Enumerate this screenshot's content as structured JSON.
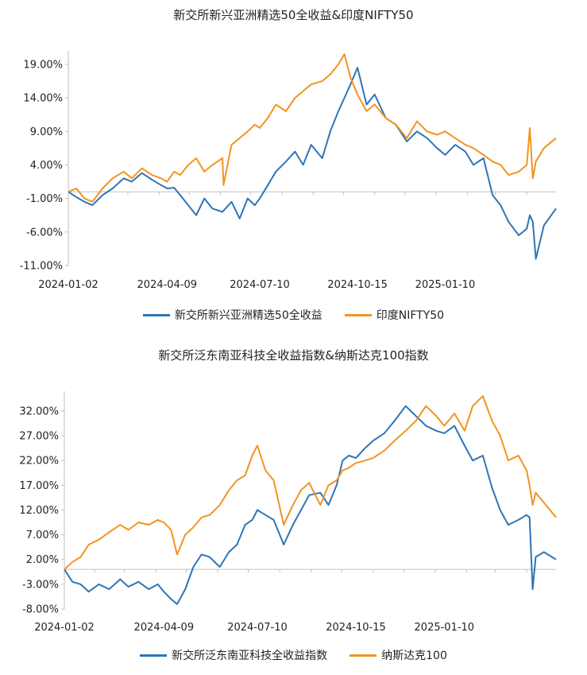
{
  "colors": {
    "blue": "#2E75B6",
    "orange": "#F39321",
    "axis": "#BFBFBF"
  },
  "chart_data": [
    {
      "type": "line",
      "title": "新交所新兴亚洲精选50全收益&印度NIFTY50",
      "x_tick_labels": [
        "2024-01-02",
        "2024-04-09",
        "2024-07-10",
        "2024-10-15",
        "2025-01-10"
      ],
      "x_range": [
        "2024-01-02",
        "2025-04-30"
      ],
      "y_tick_labels": [
        "-11.00%",
        "-6.00%",
        "-1.00%",
        "4.00%",
        "9.00%",
        "14.00%",
        "19.00%"
      ],
      "ylim": [
        -11,
        21
      ],
      "grid": false,
      "legend_position": "bottom",
      "series": [
        {
          "name": "新交所新兴亚洲精选50全收益",
          "color": "#2E75B6",
          "x": [
            "2024-01-02",
            "2024-01-10",
            "2024-01-18",
            "2024-01-26",
            "2024-02-05",
            "2024-02-15",
            "2024-02-26",
            "2024-03-05",
            "2024-03-15",
            "2024-03-25",
            "2024-04-03",
            "2024-04-09",
            "2024-04-16",
            "2024-04-22",
            "2024-04-30",
            "2024-05-08",
            "2024-05-16",
            "2024-05-24",
            "2024-06-03",
            "2024-06-12",
            "2024-06-20",
            "2024-06-28",
            "2024-07-05",
            "2024-07-10",
            "2024-07-18",
            "2024-07-26",
            "2024-08-05",
            "2024-08-14",
            "2024-08-22",
            "2024-08-30",
            "2024-09-10",
            "2024-09-18",
            "2024-09-26",
            "2024-10-02",
            "2024-10-08",
            "2024-10-15",
            "2024-10-24",
            "2024-11-01",
            "2024-11-12",
            "2024-11-22",
            "2024-12-03",
            "2024-12-13",
            "2024-12-23",
            "2025-01-02",
            "2025-01-10",
            "2025-01-20",
            "2025-01-30",
            "2025-02-07",
            "2025-02-17",
            "2025-02-26",
            "2025-03-06",
            "2025-03-14",
            "2025-03-24",
            "2025-04-01",
            "2025-04-04",
            "2025-04-07",
            "2025-04-10",
            "2025-04-18",
            "2025-04-30"
          ],
          "values": [
            0.0,
            -0.8,
            -1.5,
            -2.0,
            -0.5,
            0.5,
            2.0,
            1.5,
            2.8,
            1.8,
            1.0,
            0.5,
            0.6,
            -0.5,
            -2.0,
            -3.5,
            -1.0,
            -2.5,
            -3.0,
            -1.5,
            -4.0,
            -1.0,
            -2.0,
            -1.0,
            1.0,
            3.0,
            4.5,
            6.0,
            4.0,
            7.0,
            5.0,
            9.0,
            12.0,
            14.0,
            16.0,
            18.5,
            13.0,
            14.5,
            11.0,
            10.0,
            7.5,
            9.0,
            8.0,
            6.5,
            5.5,
            7.0,
            6.0,
            4.0,
            5.0,
            -0.5,
            -2.0,
            -4.5,
            -6.5,
            -5.5,
            -3.5,
            -4.5,
            -10.0,
            -5.0,
            -2.5
          ]
        },
        {
          "name": "印度NIFTY50",
          "color": "#F39321",
          "x": [
            "2024-01-02",
            "2024-01-10",
            "2024-01-18",
            "2024-01-26",
            "2024-02-05",
            "2024-02-15",
            "2024-02-26",
            "2024-03-05",
            "2024-03-15",
            "2024-03-25",
            "2024-04-03",
            "2024-04-09",
            "2024-04-16",
            "2024-04-22",
            "2024-04-30",
            "2024-05-08",
            "2024-05-16",
            "2024-05-24",
            "2024-06-03",
            "2024-06-04",
            "2024-06-12",
            "2024-06-20",
            "2024-06-28",
            "2024-07-05",
            "2024-07-10",
            "2024-07-18",
            "2024-07-26",
            "2024-08-05",
            "2024-08-14",
            "2024-08-22",
            "2024-08-30",
            "2024-09-10",
            "2024-09-18",
            "2024-09-26",
            "2024-10-02",
            "2024-10-08",
            "2024-10-15",
            "2024-10-24",
            "2024-11-01",
            "2024-11-12",
            "2024-11-22",
            "2024-12-03",
            "2024-12-13",
            "2024-12-23",
            "2025-01-02",
            "2025-01-10",
            "2025-01-20",
            "2025-01-30",
            "2025-02-07",
            "2025-02-17",
            "2025-02-26",
            "2025-03-06",
            "2025-03-14",
            "2025-03-24",
            "2025-04-01",
            "2025-04-04",
            "2025-04-07",
            "2025-04-10",
            "2025-04-18",
            "2025-04-30"
          ],
          "values": [
            0.0,
            0.5,
            -1.0,
            -1.5,
            0.5,
            2.0,
            3.0,
            2.0,
            3.5,
            2.5,
            2.0,
            1.5,
            3.0,
            2.5,
            4.0,
            5.0,
            3.0,
            4.0,
            5.0,
            1.0,
            7.0,
            8.0,
            9.0,
            10.0,
            9.5,
            11.0,
            13.0,
            12.0,
            14.0,
            15.0,
            16.0,
            16.5,
            17.5,
            19.0,
            20.5,
            17.0,
            14.5,
            12.0,
            13.0,
            11.0,
            10.0,
            8.0,
            10.5,
            9.0,
            8.5,
            9.0,
            8.0,
            7.0,
            6.5,
            5.5,
            4.5,
            4.0,
            2.5,
            3.0,
            4.0,
            9.5,
            2.0,
            4.5,
            6.5,
            8.0
          ]
        }
      ]
    },
    {
      "type": "line",
      "title": "新交所泛东南亚科技全收益指数&纳斯达克100指数",
      "x_tick_labels": [
        "2024-01-02",
        "2024-04-09",
        "2024-07-10",
        "2024-10-15",
        "2025-01-10"
      ],
      "x_range": [
        "2024-01-02",
        "2025-04-30"
      ],
      "y_tick_labels": [
        "-8.00%",
        "-3.00%",
        "2.00%",
        "7.00%",
        "12.00%",
        "17.00%",
        "22.00%",
        "27.00%",
        "32.00%"
      ],
      "ylim": [
        -8,
        36
      ],
      "grid": false,
      "legend_position": "bottom",
      "series": [
        {
          "name": "新交所泛东南亚科技全收益指数",
          "color": "#2E75B6",
          "x": [
            "2024-01-02",
            "2024-01-10",
            "2024-01-18",
            "2024-01-26",
            "2024-02-05",
            "2024-02-15",
            "2024-02-26",
            "2024-03-05",
            "2024-03-15",
            "2024-03-25",
            "2024-04-03",
            "2024-04-09",
            "2024-04-16",
            "2024-04-22",
            "2024-04-30",
            "2024-05-08",
            "2024-05-16",
            "2024-05-24",
            "2024-06-03",
            "2024-06-12",
            "2024-06-20",
            "2024-06-28",
            "2024-07-05",
            "2024-07-10",
            "2024-07-18",
            "2024-07-26",
            "2024-08-05",
            "2024-08-14",
            "2024-08-22",
            "2024-08-30",
            "2024-09-10",
            "2024-09-18",
            "2024-09-26",
            "2024-10-02",
            "2024-10-08",
            "2024-10-15",
            "2024-10-24",
            "2024-11-01",
            "2024-11-12",
            "2024-11-22",
            "2024-12-03",
            "2024-12-13",
            "2024-12-23",
            "2025-01-02",
            "2025-01-10",
            "2025-01-20",
            "2025-01-30",
            "2025-02-07",
            "2025-02-17",
            "2025-02-26",
            "2025-03-06",
            "2025-03-14",
            "2025-03-24",
            "2025-04-01",
            "2025-04-04",
            "2025-04-07",
            "2025-04-10",
            "2025-04-18",
            "2025-04-30"
          ],
          "values": [
            0.0,
            -2.5,
            -3.0,
            -4.5,
            -3.0,
            -4.0,
            -2.0,
            -3.5,
            -2.5,
            -4.0,
            -3.0,
            -4.5,
            -6.0,
            -7.0,
            -4.0,
            0.5,
            3.0,
            2.5,
            0.5,
            3.5,
            5.0,
            9.0,
            10.0,
            12.0,
            11.0,
            10.0,
            5.0,
            9.0,
            12.0,
            15.0,
            15.5,
            13.0,
            17.0,
            22.0,
            23.0,
            22.5,
            24.5,
            26.0,
            27.5,
            30.0,
            33.0,
            31.0,
            29.0,
            28.0,
            27.5,
            29.0,
            25.0,
            22.0,
            23.0,
            16.5,
            12.0,
            9.0,
            10.0,
            11.0,
            10.5,
            -4.0,
            2.5,
            3.5,
            2.0
          ]
        },
        {
          "name": "纳斯达克100",
          "color": "#F39321",
          "x": [
            "2024-01-02",
            "2024-01-10",
            "2024-01-18",
            "2024-01-26",
            "2024-02-05",
            "2024-02-15",
            "2024-02-26",
            "2024-03-05",
            "2024-03-15",
            "2024-03-25",
            "2024-04-03",
            "2024-04-09",
            "2024-04-16",
            "2024-04-22",
            "2024-04-30",
            "2024-05-08",
            "2024-05-16",
            "2024-05-24",
            "2024-06-03",
            "2024-06-12",
            "2024-06-20",
            "2024-06-28",
            "2024-07-05",
            "2024-07-10",
            "2024-07-18",
            "2024-07-26",
            "2024-08-05",
            "2024-08-14",
            "2024-08-22",
            "2024-08-30",
            "2024-09-10",
            "2024-09-18",
            "2024-09-26",
            "2024-10-02",
            "2024-10-08",
            "2024-10-15",
            "2024-10-24",
            "2024-11-01",
            "2024-11-12",
            "2024-11-22",
            "2024-12-03",
            "2024-12-13",
            "2024-12-23",
            "2025-01-02",
            "2025-01-10",
            "2025-01-20",
            "2025-01-30",
            "2025-02-07",
            "2025-02-17",
            "2025-02-26",
            "2025-03-06",
            "2025-03-14",
            "2025-03-24",
            "2025-04-01",
            "2025-04-04",
            "2025-04-07",
            "2025-04-10",
            "2025-04-18",
            "2025-04-30"
          ],
          "values": [
            0.0,
            1.5,
            2.5,
            5.0,
            6.0,
            7.5,
            9.0,
            8.0,
            9.5,
            9.0,
            10.0,
            9.5,
            8.0,
            3.0,
            7.0,
            8.5,
            10.5,
            11.0,
            13.0,
            16.0,
            18.0,
            19.0,
            23.0,
            25.0,
            20.0,
            18.0,
            9.0,
            13.0,
            16.0,
            17.5,
            13.0,
            17.0,
            18.0,
            20.0,
            20.5,
            21.5,
            22.0,
            22.5,
            24.0,
            26.0,
            28.0,
            30.0,
            33.0,
            31.0,
            29.0,
            31.5,
            28.0,
            33.0,
            35.0,
            30.0,
            27.0,
            22.0,
            23.0,
            20.0,
            17.0,
            13.0,
            15.5,
            13.5,
            10.5
          ]
        }
      ]
    }
  ]
}
